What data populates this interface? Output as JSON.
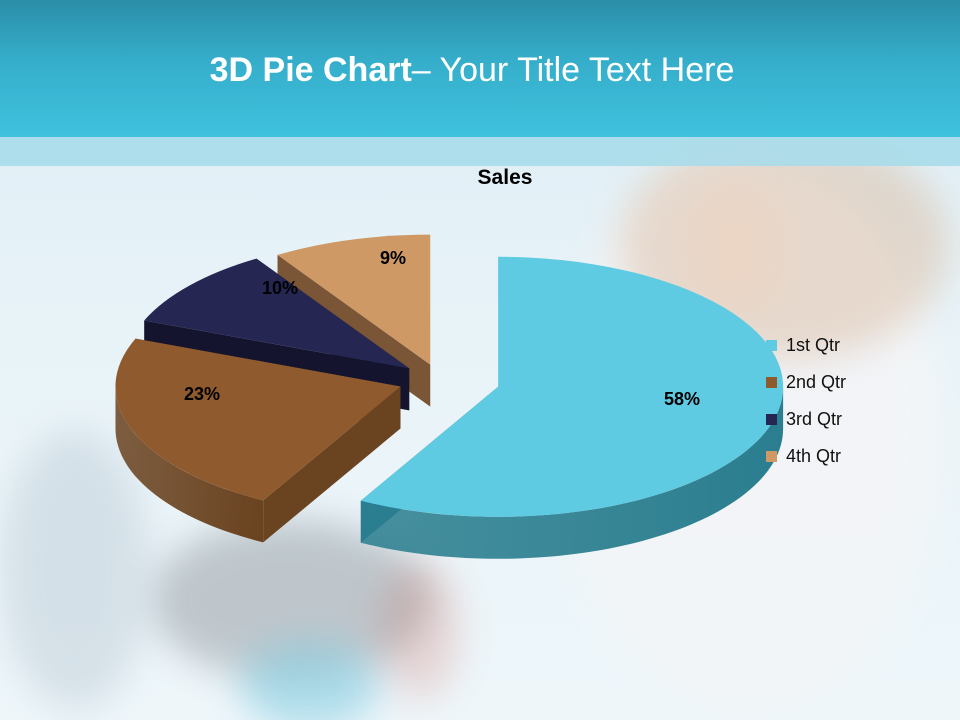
{
  "slide": {
    "title_bold": "3D Pie Chart",
    "title_rest": "– Your Title Text Here"
  },
  "chart_data": {
    "type": "pie",
    "title": "Sales",
    "categories": [
      "1st Qtr",
      "2nd Qtr",
      "3rd Qtr",
      "4th Qtr"
    ],
    "values": [
      58,
      23,
      10,
      9
    ],
    "labels": [
      "58%",
      "23%",
      "10%",
      "9%"
    ],
    "colors": [
      "#5ecbe3",
      "#8f5b2e",
      "#262653",
      "#cf9966"
    ],
    "side_colors": [
      "#2a7e8f",
      "#6a4320",
      "#14142e",
      "#7a5536"
    ],
    "legend_position": "right",
    "style": "3D exploded"
  }
}
